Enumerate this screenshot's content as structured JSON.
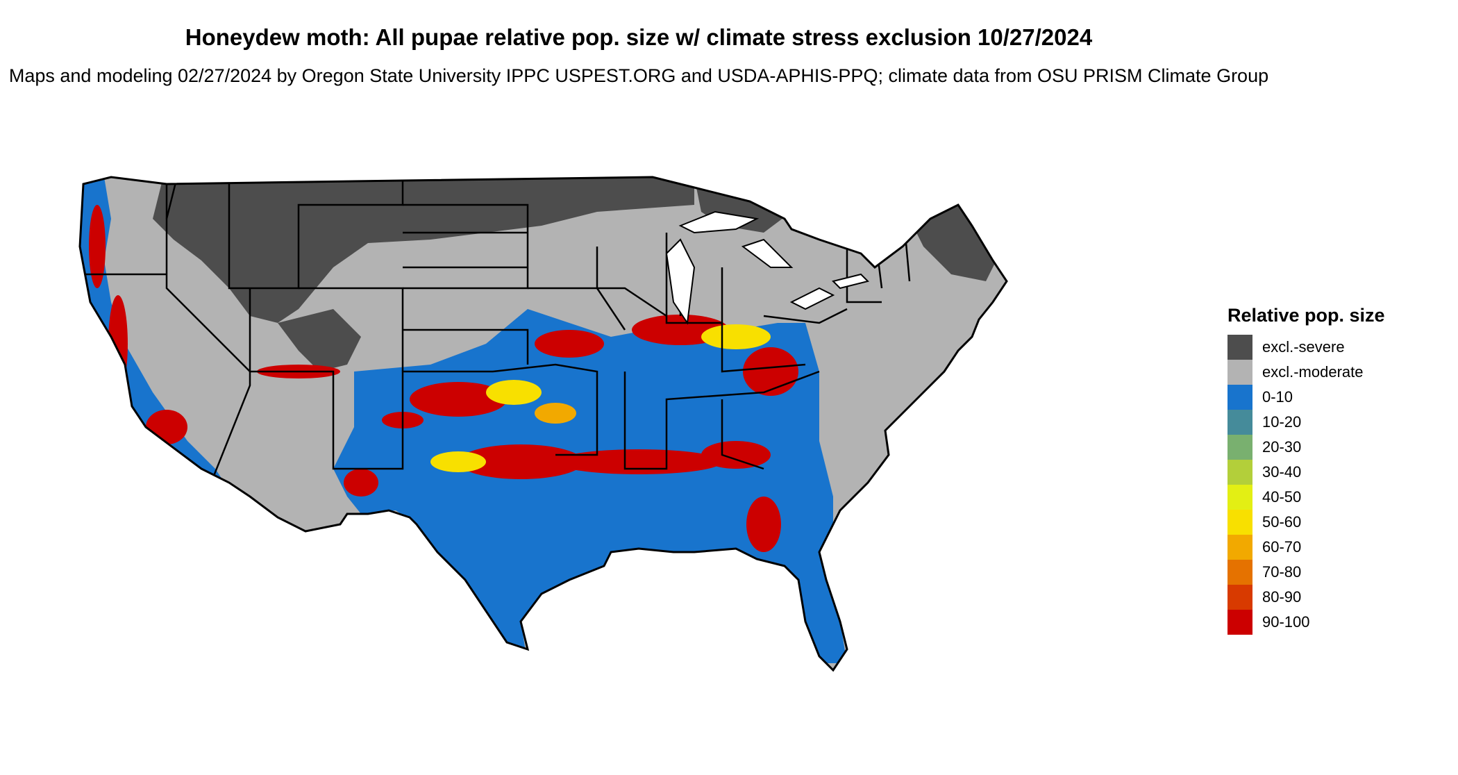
{
  "title": "Honeydew moth: All pupae relative pop. size w/ climate stress exclusion 10/27/2024",
  "subtitle": "Maps and modeling 02/27/2024 by Oregon State University IPPC USPEST.ORG and USDA-APHIS-PPQ; climate data from OSU PRISM Climate Group",
  "legend": {
    "title": "Relative pop. size",
    "items": [
      {
        "label": "excl.-severe",
        "color": "#4d4d4d"
      },
      {
        "label": "excl.-moderate",
        "color": "#b3b3b3"
      },
      {
        "label": "0-10",
        "color": "#1874cd"
      },
      {
        "label": "10-20",
        "color": "#458b9a"
      },
      {
        "label": "20-30",
        "color": "#79b06f"
      },
      {
        "label": "30-40",
        "color": "#b3cf3a"
      },
      {
        "label": "40-50",
        "color": "#e3ef14"
      },
      {
        "label": "50-60",
        "color": "#f8e000"
      },
      {
        "label": "60-70",
        "color": "#f2a900"
      },
      {
        "label": "70-80",
        "color": "#e57200"
      },
      {
        "label": "80-90",
        "color": "#d83a00"
      },
      {
        "label": "90-100",
        "color": "#cc0000"
      }
    ]
  },
  "map": {
    "region": "Contiguous United States",
    "colors": {
      "severe": "#4d4d4d",
      "moderate": "#b3b3b3",
      "low": "#1874cd",
      "mid": "#f8e000",
      "high": "#cc0000",
      "border": "#000000"
    }
  }
}
